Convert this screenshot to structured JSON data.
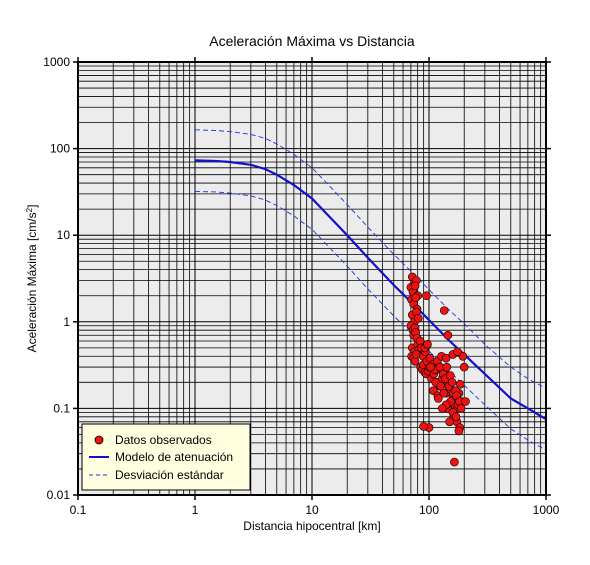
{
  "chart_data": {
    "type": "scatter",
    "title": "Aceleración Máxima vs Distancia",
    "xlabel": "Distancia hipocentral [km]",
    "ylabel_main": "Aceleración Máxima [cm/s",
    "ylabel_sup": "2",
    "ylabel_end": "]",
    "xscale": "log",
    "yscale": "log",
    "xlim": [
      0.1,
      1000
    ],
    "ylim": [
      0.01,
      1000
    ],
    "grid": true,
    "legend_position": "bottom-left",
    "x_ticks": [
      {
        "value": 0.1,
        "label": "0.1"
      },
      {
        "value": 1,
        "label": "1"
      },
      {
        "value": 10,
        "label": "10"
      },
      {
        "value": 100,
        "label": "100"
      },
      {
        "value": 1000,
        "label": "1000"
      }
    ],
    "y_ticks": [
      {
        "value": 0.01,
        "label": "0.01"
      },
      {
        "value": 0.1,
        "label": "0.1"
      },
      {
        "value": 1,
        "label": "1"
      },
      {
        "value": 10,
        "label": "10"
      },
      {
        "value": 100,
        "label": "100"
      },
      {
        "value": 1000,
        "label": "1000"
      }
    ],
    "colors": {
      "plot_background": "#ececec",
      "grid": "#000000",
      "observed": "#ee1111",
      "model": "#1111cc",
      "deviation": "#2233dd",
      "legend_background": "#ffffe0"
    },
    "series": [
      {
        "name": "Datos observados",
        "kind": "scatter",
        "x": [
          72,
          75,
          78,
          70,
          73,
          76,
          80,
          71,
          74,
          77,
          79,
          72,
          75,
          78,
          81,
          70,
          73,
          76,
          74,
          77,
          79,
          72,
          75,
          80,
          82,
          71,
          74,
          76,
          78,
          85,
          88,
          90,
          92,
          95,
          98,
          100,
          105,
          110,
          115,
          120,
          125,
          130,
          135,
          140,
          145,
          150,
          155,
          160,
          165,
          170,
          175,
          180,
          185,
          190,
          200,
          84,
          86,
          89,
          93,
          96,
          102,
          108,
          112,
          118,
          124,
          128,
          132,
          138,
          142,
          148,
          152,
          158,
          162,
          168,
          172,
          178,
          182,
          188,
          195,
          205,
          92,
          97,
          103,
          109,
          114,
          119,
          126,
          134,
          143,
          153,
          163,
          173,
          183,
          100,
          120,
          140,
          160,
          130,
          150,
          170,
          180,
          95,
          135,
          145,
          160,
          175,
          140,
          90,
          165
        ],
        "y": [
          3.3,
          2.8,
          3.0,
          2.5,
          2.2,
          2.6,
          2.0,
          1.8,
          1.6,
          1.9,
          1.4,
          1.2,
          1.0,
          1.3,
          1.1,
          0.9,
          0.8,
          0.85,
          0.7,
          0.75,
          0.65,
          0.5,
          0.45,
          0.55,
          0.48,
          0.4,
          0.38,
          0.35,
          0.42,
          0.3,
          0.28,
          0.32,
          0.26,
          0.25,
          0.27,
          0.3,
          0.22,
          0.25,
          0.28,
          0.2,
          0.18,
          0.22,
          0.26,
          0.15,
          0.2,
          0.17,
          0.12,
          0.14,
          0.11,
          0.13,
          0.1,
          0.15,
          0.19,
          0.12,
          0.3,
          0.6,
          0.5,
          0.4,
          0.45,
          0.35,
          0.38,
          0.32,
          0.28,
          0.35,
          0.3,
          0.4,
          0.25,
          0.22,
          0.3,
          0.18,
          0.24,
          0.2,
          0.15,
          0.16,
          0.14,
          0.11,
          0.12,
          0.1,
          0.4,
          0.12,
          0.5,
          0.55,
          0.3,
          0.16,
          0.2,
          0.14,
          0.18,
          0.15,
          0.1,
          0.12,
          0.08,
          0.07,
          0.06,
          0.06,
          0.13,
          0.11,
          0.09,
          0.1,
          0.07,
          0.08,
          0.055,
          2.0,
          1.35,
          0.7,
          0.42,
          0.45,
          0.38,
          0.062,
          0.024
        ]
      },
      {
        "name": "Modelo de atenuación",
        "kind": "line",
        "x": [
          1,
          1.5,
          2,
          3,
          4,
          5,
          7,
          10,
          15,
          20,
          30,
          50,
          70,
          100,
          150,
          200,
          300,
          500,
          700,
          1000
        ],
        "y": [
          73,
          72,
          70,
          65,
          58,
          50,
          38,
          26.5,
          15,
          10,
          5.5,
          2.65,
          1.7,
          1.05,
          0.6,
          0.42,
          0.25,
          0.13,
          0.1,
          0.075
        ]
      },
      {
        "name": "Desviación estándar",
        "kind": "dashed",
        "bands": [
          {
            "x": [
              1,
              1.5,
              2,
              3,
              4,
              5,
              7,
              10,
              15,
              20,
              30,
              50,
              70,
              100,
              150,
              200,
              300,
              500,
              700,
              1000
            ],
            "y": [
              165,
              162,
              157,
              146,
              131,
              113,
              86,
              60,
              34,
              22.5,
              12.4,
              6.0,
              3.85,
              2.35,
              1.35,
              0.95,
              0.55,
              0.3,
              0.22,
              0.17
            ]
          },
          {
            "x": [
              1,
              1.5,
              2,
              3,
              4,
              5,
              7,
              10,
              15,
              20,
              30,
              50,
              70,
              100,
              150,
              200,
              300,
              500,
              700,
              1000
            ],
            "y": [
              32,
              31.6,
              30.6,
              28.4,
              25.4,
              22,
              16.7,
              11.7,
              6.6,
              4.4,
              2.4,
              1.17,
              0.75,
              0.46,
              0.265,
              0.185,
              0.11,
              0.058,
              0.043,
              0.033
            ]
          }
        ]
      }
    ]
  }
}
